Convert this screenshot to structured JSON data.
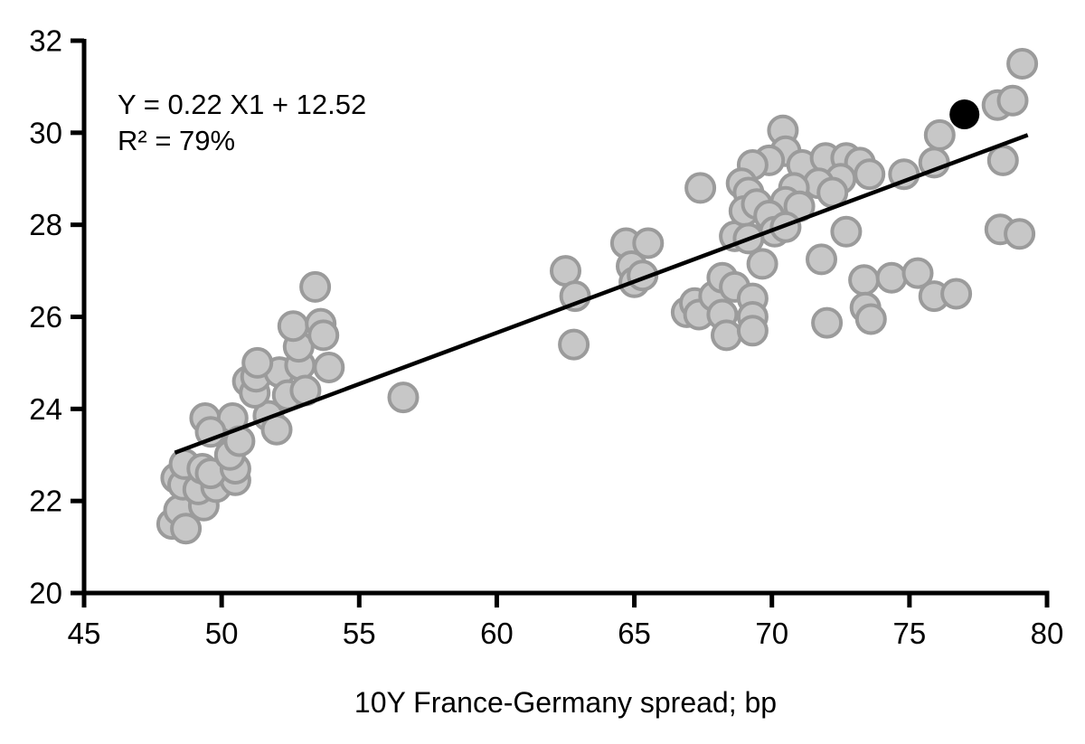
{
  "chart_data": {
    "type": "scatter",
    "title": "",
    "xlabel": "10Y France-Germany spread; bp",
    "ylabel": "",
    "xlim": [
      45,
      80
    ],
    "ylim": [
      20,
      32
    ],
    "x_ticks": [
      45,
      50,
      55,
      60,
      65,
      70,
      75,
      80
    ],
    "y_ticks": [
      20,
      22,
      24,
      26,
      28,
      30,
      32
    ],
    "grid": false,
    "legend": "none",
    "annotation": {
      "line1": "Y = 0.22 X1 + 12.52",
      "line2": "R² = 79%"
    },
    "trendline": {
      "slope": 0.22,
      "intercept": 12.52,
      "x1": 48.3,
      "y1": 23.05,
      "x2": 79.3,
      "y2": 29.95,
      "color": "#000000"
    },
    "series": [
      {
        "name": "observations",
        "marker_fill": "#c7c7c7",
        "marker_edge": "#9b9b9b",
        "points": [
          [
            48.2,
            21.5
          ],
          [
            48.45,
            21.8
          ],
          [
            48.7,
            21.4
          ],
          [
            49.35,
            21.9
          ],
          [
            48.35,
            22.5
          ],
          [
            48.6,
            22.35
          ],
          [
            49.15,
            22.25
          ],
          [
            49.8,
            22.3
          ],
          [
            50.5,
            22.45
          ],
          [
            48.65,
            22.8
          ],
          [
            49.3,
            22.7
          ],
          [
            49.6,
            22.6
          ],
          [
            50.5,
            22.7
          ],
          [
            50.3,
            23.0
          ],
          [
            49.4,
            23.8
          ],
          [
            50.4,
            23.8
          ],
          [
            49.6,
            23.5
          ],
          [
            50.65,
            23.3
          ],
          [
            51.7,
            23.85
          ],
          [
            52.0,
            23.55
          ],
          [
            50.95,
            24.6
          ],
          [
            51.2,
            24.35
          ],
          [
            51.25,
            24.7
          ],
          [
            52.1,
            24.8
          ],
          [
            52.4,
            24.3
          ],
          [
            52.85,
            24.95
          ],
          [
            53.05,
            24.4
          ],
          [
            53.9,
            24.9
          ],
          [
            51.3,
            25.0
          ],
          [
            52.8,
            25.35
          ],
          [
            52.6,
            25.8
          ],
          [
            53.6,
            25.85
          ],
          [
            53.7,
            25.6
          ],
          [
            53.4,
            26.65
          ],
          [
            56.6,
            24.25
          ],
          [
            62.5,
            27.0
          ],
          [
            62.85,
            26.45
          ],
          [
            62.8,
            25.4
          ],
          [
            64.7,
            27.6
          ],
          [
            65.5,
            27.6
          ],
          [
            64.9,
            27.1
          ],
          [
            65.0,
            26.75
          ],
          [
            65.3,
            26.9
          ],
          [
            67.4,
            28.8
          ],
          [
            66.9,
            26.1
          ],
          [
            67.2,
            26.3
          ],
          [
            67.35,
            26.05
          ],
          [
            67.9,
            26.45
          ],
          [
            68.2,
            26.85
          ],
          [
            68.2,
            26.05
          ],
          [
            68.65,
            26.65
          ],
          [
            69.3,
            26.4
          ],
          [
            69.3,
            26.0
          ],
          [
            68.35,
            25.6
          ],
          [
            69.3,
            25.7
          ],
          [
            69.65,
            27.15
          ],
          [
            68.65,
            27.75
          ],
          [
            72.0,
            25.87
          ],
          [
            70.4,
            30.05
          ],
          [
            70.5,
            29.6
          ],
          [
            69.9,
            29.4
          ],
          [
            69.3,
            29.3
          ],
          [
            71.1,
            29.3
          ],
          [
            71.95,
            29.45
          ],
          [
            72.7,
            29.45
          ],
          [
            73.2,
            29.35
          ],
          [
            73.55,
            29.1
          ],
          [
            72.5,
            29.0
          ],
          [
            71.7,
            28.9
          ],
          [
            70.8,
            28.8
          ],
          [
            72.2,
            28.7
          ],
          [
            68.9,
            28.9
          ],
          [
            69.15,
            28.7
          ],
          [
            69.0,
            28.3
          ],
          [
            69.45,
            28.45
          ],
          [
            70.5,
            28.5
          ],
          [
            69.9,
            28.2
          ],
          [
            71.0,
            28.4
          ],
          [
            70.1,
            27.85
          ],
          [
            70.5,
            27.95
          ],
          [
            69.15,
            27.7
          ],
          [
            71.8,
            27.25
          ],
          [
            72.7,
            27.85
          ],
          [
            73.35,
            26.8
          ],
          [
            74.35,
            26.85
          ],
          [
            75.3,
            26.95
          ],
          [
            73.4,
            26.2
          ],
          [
            73.6,
            25.95
          ],
          [
            75.9,
            26.45
          ],
          [
            76.7,
            26.5
          ],
          [
            74.8,
            29.1
          ],
          [
            75.9,
            29.35
          ],
          [
            76.1,
            29.95
          ],
          [
            78.4,
            29.4
          ],
          [
            78.2,
            30.6
          ],
          [
            78.75,
            30.7
          ],
          [
            79.1,
            31.5
          ],
          [
            78.3,
            27.9
          ],
          [
            79.0,
            27.8
          ]
        ]
      },
      {
        "name": "highlighted-latest-observation",
        "marker_fill": "#000000",
        "marker_edge": "#000000",
        "points": [
          [
            77.0,
            30.4
          ]
        ]
      }
    ]
  },
  "colors": {
    "axis": "#000000",
    "tick_label": "#000000",
    "background": "#ffffff"
  }
}
